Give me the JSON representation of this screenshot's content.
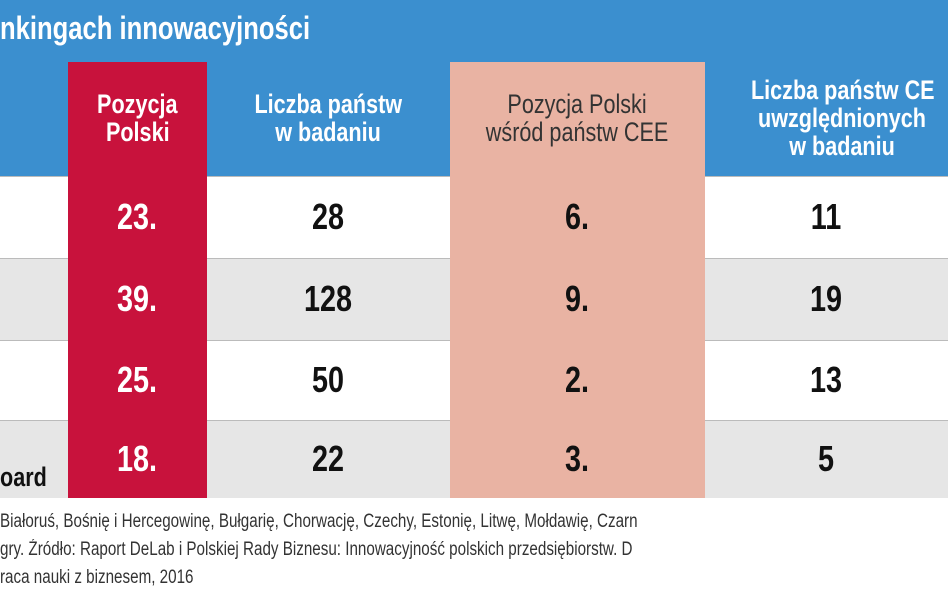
{
  "title": "nkingach innowacyjności",
  "table": {
    "header": [
      [
        "Pozycja",
        "Polski"
      ],
      [
        "Liczba państw",
        "w badaniu"
      ],
      [
        "Pozycja Polski",
        "wśród państw CEE"
      ],
      [
        "Liczba państw CE",
        "uwzględnionych",
        "w badaniu"
      ]
    ],
    "rows": [
      {
        "cells": [
          "23.",
          "28",
          "6.",
          "11"
        ]
      },
      {
        "cells": [
          "39.",
          "128",
          "9.",
          "19"
        ]
      },
      {
        "cells": [
          "25.",
          "50",
          "2.",
          "13"
        ]
      },
      {
        "label": "oard",
        "cells": [
          "18.",
          "22",
          "3.",
          "5"
        ]
      }
    ]
  },
  "footnote": [
    "Białoruś, Bośnię i Hercegowinę, Bułgarię, Chorwację, Czechy, Estonię, Litwę, Mołdawię, Czarn",
    "gry. Źródło: Raport DeLab i Polskiej Rady Biznesu: Innowacyjność polskich przedsiębiorstw. D",
    "raca nauki z biznesem, 2016"
  ]
}
